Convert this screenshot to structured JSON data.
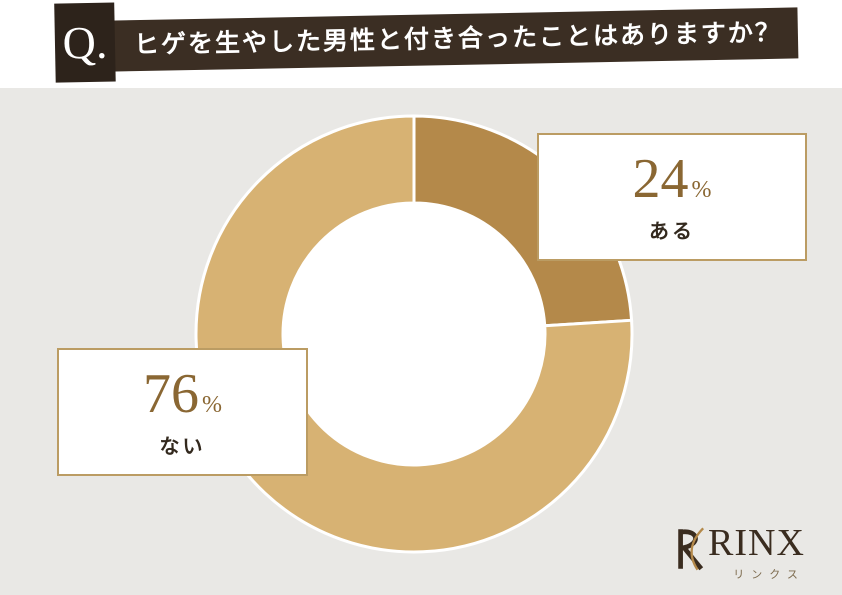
{
  "header": {
    "q_label": "Q.",
    "question": "ヒゲを生やした男性と付き合ったことはありますか？"
  },
  "chart_data": {
    "type": "pie",
    "subtype": "donut",
    "title": "ヒゲを生やした男性と付き合ったことはありますか？",
    "categories": [
      "ある",
      "ない"
    ],
    "values": [
      24,
      76
    ],
    "unit": "%",
    "colors": [
      "#b4894a",
      "#d7b273"
    ],
    "start_angle_deg": 0,
    "direction": "clockwise",
    "donut_hole_color": "#ffffff",
    "legend_position": "callout-boxes"
  },
  "logo": {
    "brand": "RINX",
    "subtext": "リンクス"
  },
  "theme": {
    "banner_color": "#3b2e23",
    "qbox_color": "#2d231b",
    "background_gray": "#e9e8e5",
    "callout_border": "#bb9c63",
    "number_color": "#8a6733",
    "label_color": "#33291e",
    "logo_color": "#3a2c1f",
    "logo_sub_color": "#7d6b4e"
  }
}
